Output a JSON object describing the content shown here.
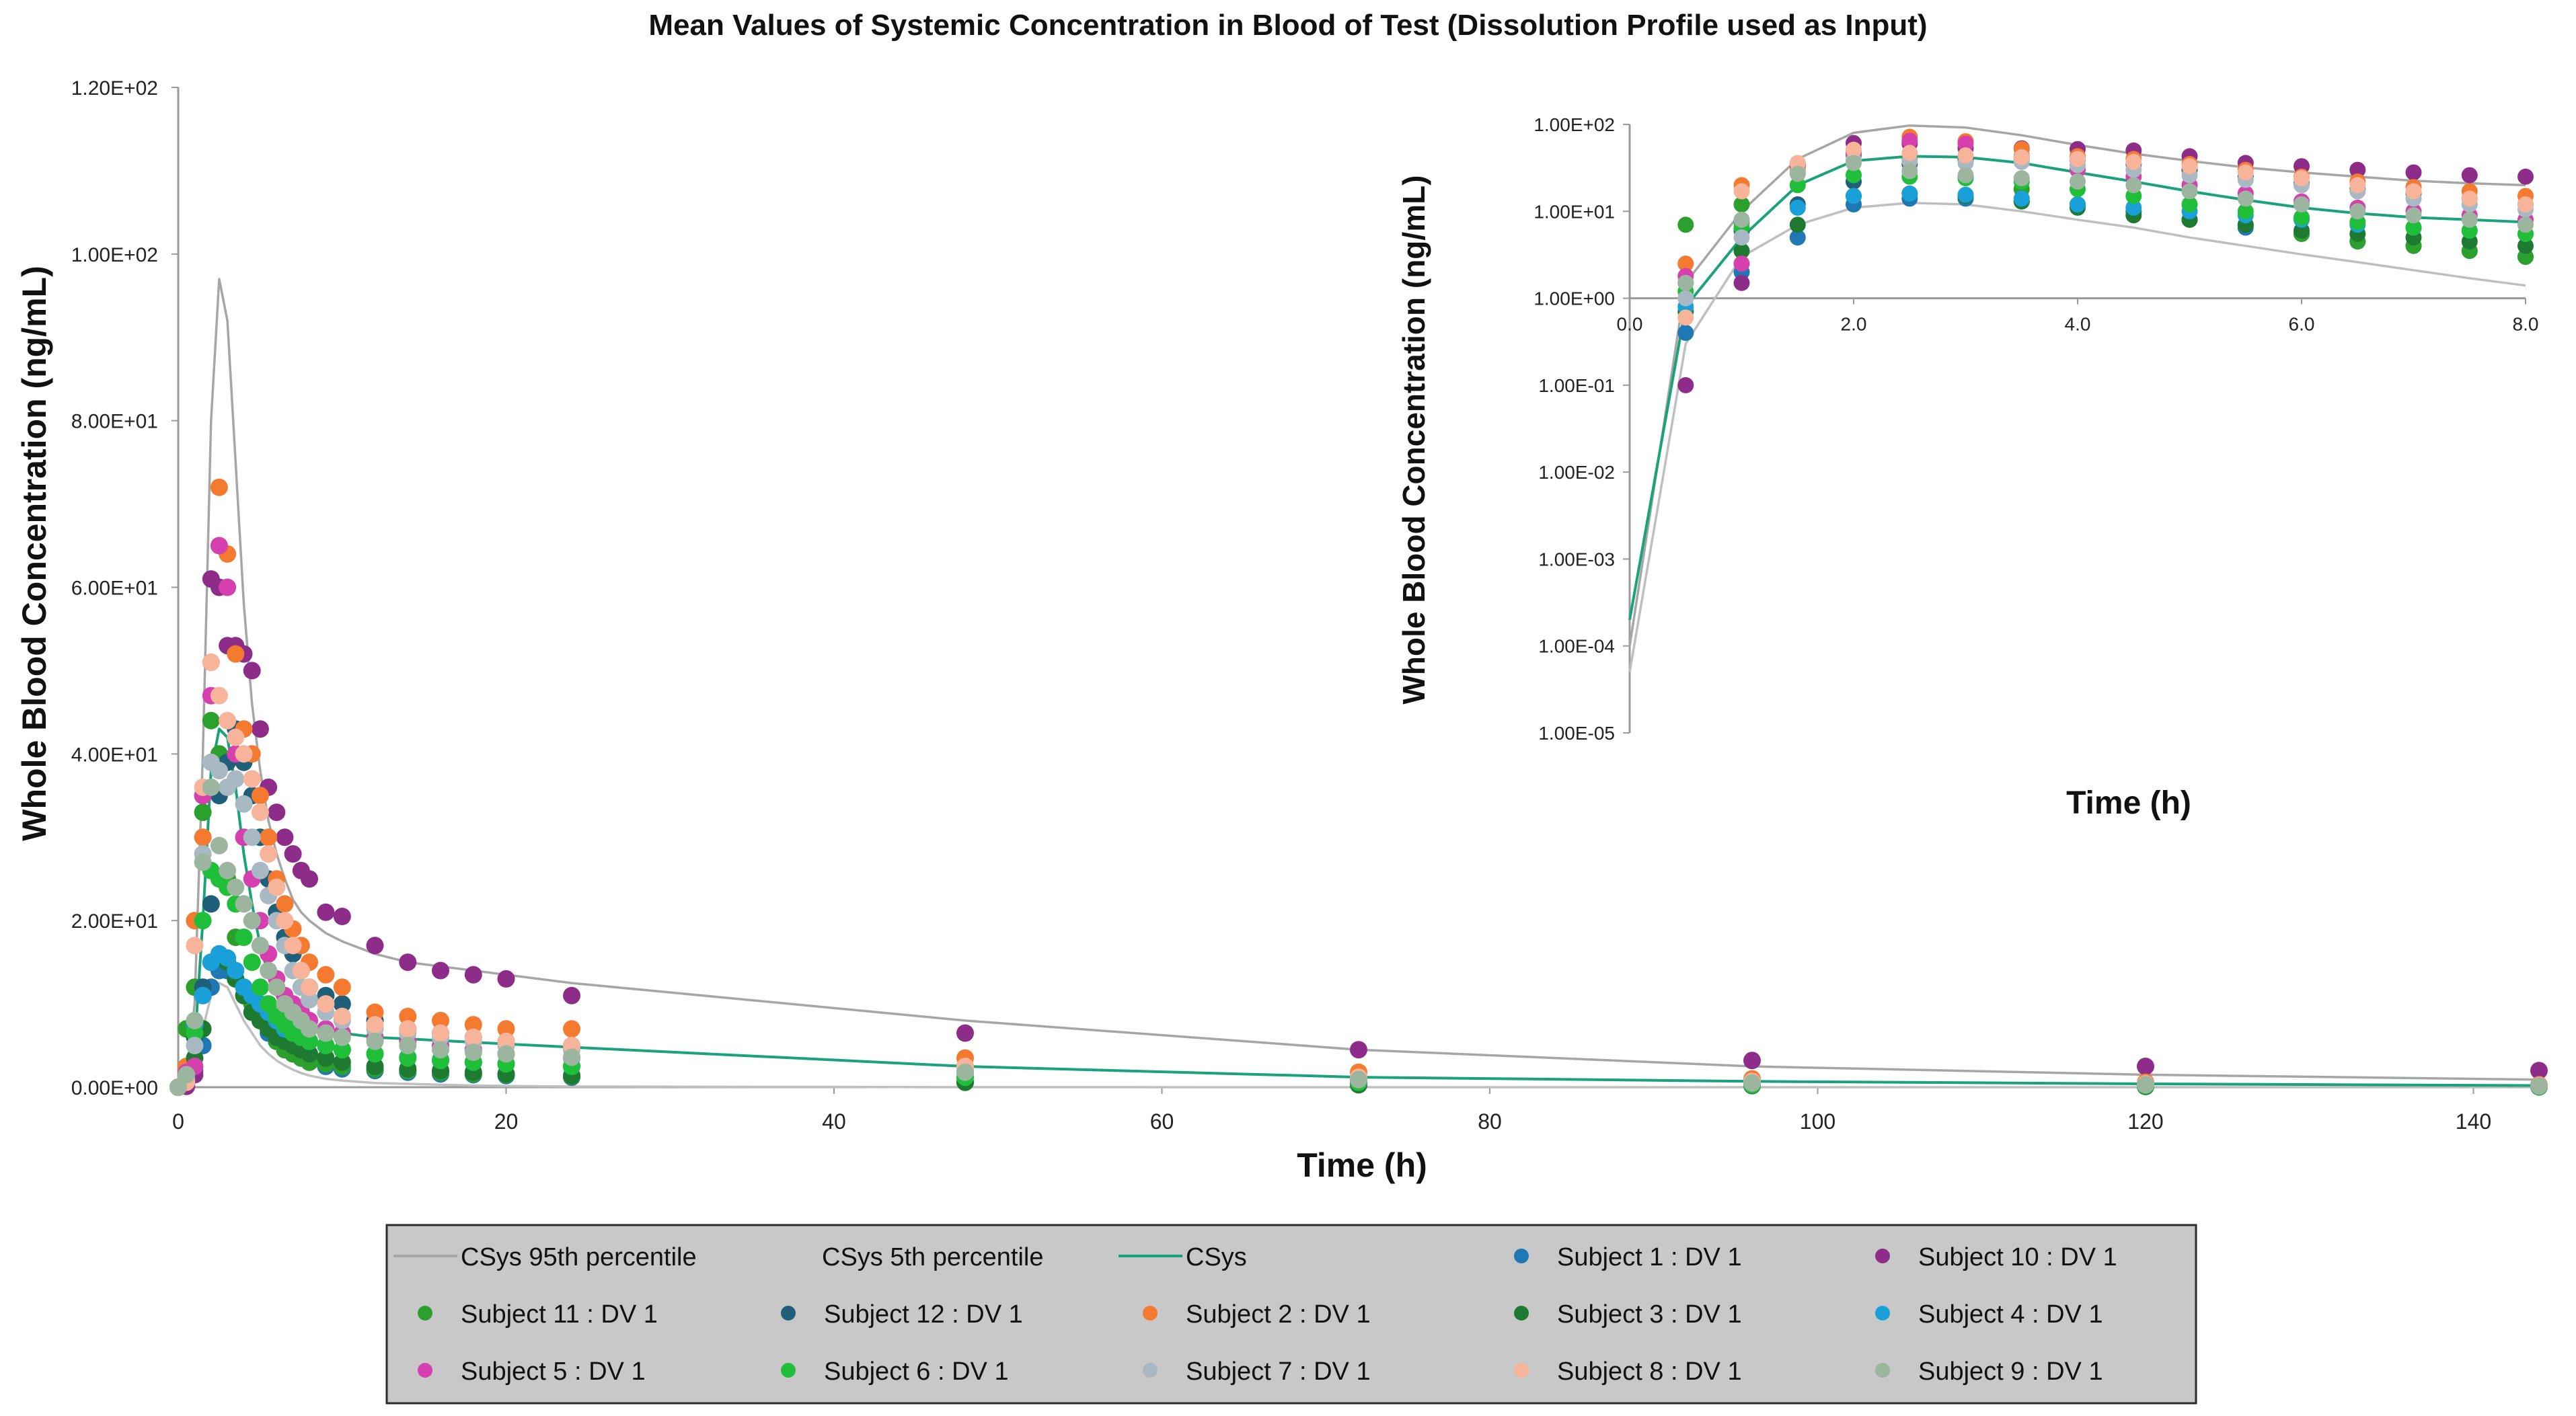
{
  "chart_data": {
    "type": "scatter",
    "title": "Mean Values of Systemic Concentration in Blood of Test (Dissolution Profile used as Input)",
    "colors": {
      "p95": "#a6a6a6",
      "p5": "#bfbfbf",
      "csys": "#1aa37a",
      "legend_bg": "#c8c8c8",
      "legend_border": "#2b2b2b",
      "axis": "#9a9a9a"
    },
    "main": {
      "xlabel": "Time (h)",
      "ylabel": "Whole Blood Concentration (ng/mL)",
      "xlim": [
        0,
        144
      ],
      "ylim": [
        0,
        120
      ],
      "xticks": [
        0,
        20,
        40,
        60,
        80,
        100,
        120,
        140
      ],
      "xtick_labels": [
        "0",
        "20",
        "40",
        "60",
        "80",
        "100",
        "120",
        "140"
      ],
      "yticks": [
        0,
        20,
        40,
        60,
        80,
        100,
        120
      ],
      "ytick_labels": [
        "0.00E+00",
        "2.00E+01",
        "4.00E+01",
        "6.00E+01",
        "8.00E+01",
        "1.00E+02",
        "1.20E+02"
      ]
    },
    "inset": {
      "xlabel": "Time (h)",
      "ylabel": "Whole Blood Concentration (ng/mL)",
      "scale": "log",
      "xlim": [
        0,
        8
      ],
      "ylim": [
        1e-05,
        100
      ],
      "xticks": [
        0,
        2,
        4,
        6,
        8
      ],
      "xtick_labels": [
        "0.0",
        "2.0",
        "4.0",
        "6.0",
        "8.0"
      ],
      "yticks": [
        100,
        10,
        1,
        0.1,
        0.01,
        0.001,
        0.0001,
        1e-05
      ],
      "ytick_labels": [
        "1.00E+02",
        "1.00E+01",
        "1.00E+00",
        "1.00E-01",
        "1.00E-02",
        "1.00E-03",
        "1.00E-04",
        "1.00E-05"
      ]
    },
    "x": [
      0,
      0.5,
      1,
      1.5,
      2,
      2.5,
      3,
      3.5,
      4,
      4.5,
      5,
      5.5,
      6,
      6.5,
      7,
      7.5,
      8,
      9,
      10,
      12,
      14,
      16,
      18,
      20,
      24,
      48,
      72,
      96,
      120,
      144
    ],
    "lines": [
      {
        "name": "CSys 95th percentile",
        "values": [
          0.0001,
          1.5,
          10,
          40,
          80,
          97,
          92,
          75,
          58,
          46,
          38,
          32,
          28,
          25,
          22.5,
          21,
          20,
          18.5,
          17.5,
          16,
          15,
          14.5,
          14,
          13.5,
          12.5,
          8,
          4.5,
          2.5,
          1.5,
          0.9
        ]
      },
      {
        "name": "CSys 5th percentile",
        "values": [
          5e-05,
          0.3,
          3,
          7,
          11,
          12.5,
          12,
          10,
          8,
          6.5,
          5,
          4,
          3.2,
          2.6,
          2.1,
          1.7,
          1.4,
          1,
          0.8,
          0.5,
          0.4,
          0.3,
          0.2,
          0.15,
          0.08,
          0.01,
          0.002,
          0.001,
          0.001,
          0.001
        ]
      },
      {
        "name": "CSys",
        "values": [
          0.0002,
          0.8,
          5,
          20,
          38,
          43,
          42,
          36,
          28,
          22,
          17,
          13.5,
          11,
          9.5,
          8.5,
          8,
          7.5,
          7,
          6.5,
          6,
          5.8,
          5.6,
          5.4,
          5.2,
          4.8,
          2.5,
          1.2,
          0.7,
          0.4,
          0.2
        ]
      }
    ],
    "series": [
      {
        "name": "Subject 1 : DV 1",
        "color": "#1f77b4",
        "values": [
          0,
          0.4,
          2,
          5,
          12,
          14,
          14,
          13,
          12,
          10,
          8,
          6.5,
          5.5,
          4.5,
          4,
          3.5,
          3,
          2.5,
          2.2,
          2,
          1.8,
          1.6,
          1.5,
          1.4,
          1.2,
          0.6,
          0.3,
          0.2,
          0.1,
          0.05
        ]
      },
      {
        "name": "Subject 10 : DV 1",
        "color": "#8e2c8a",
        "values": [
          0,
          0.1,
          1.5,
          35,
          61,
          60,
          53,
          53,
          52,
          50,
          43,
          36,
          33,
          30,
          28,
          26,
          25,
          21,
          20.5,
          17,
          15,
          14,
          13.5,
          13,
          11,
          6.5,
          4.5,
          3.2,
          2.5,
          2
        ]
      },
      {
        "name": "Subject 11 : DV 1",
        "color": "#2ca02c",
        "values": [
          0,
          7,
          12,
          33,
          44,
          40,
          25,
          18,
          12,
          10,
          8,
          7,
          5.5,
          4.5,
          4,
          3.5,
          3,
          2.8,
          2.5,
          2.2,
          2,
          1.8,
          1.6,
          1.5,
          1.3,
          0.6,
          0.3,
          0.2,
          0.1,
          0.05
        ]
      },
      {
        "name": "Subject 12 : DV 1",
        "color": "#1f5f7a",
        "values": [
          0,
          1.5,
          6,
          12,
          22,
          35,
          39,
          43,
          39,
          35,
          30,
          25,
          21,
          18,
          16,
          14,
          12,
          11,
          10,
          8,
          7,
          6.5,
          6,
          5.5,
          5,
          2.5,
          1.2,
          0.7,
          0.4,
          0.2
        ]
      },
      {
        "name": "Subject 2 : DV 1",
        "color": "#f47a30",
        "values": [
          0,
          2.5,
          20,
          30,
          51,
          72,
          64,
          52,
          43,
          40,
          35,
          30,
          25,
          22,
          19,
          17,
          15,
          13.5,
          12,
          9,
          8.5,
          8,
          7.5,
          7,
          7,
          3.5,
          1.8,
          1,
          0.6,
          0.3
        ]
      },
      {
        "name": "Subject 3 : DV 1",
        "color": "#1e7a30",
        "values": [
          0,
          0.7,
          3.5,
          7,
          15,
          16,
          15,
          13,
          11,
          9,
          8,
          7,
          6,
          5.5,
          5,
          4.5,
          4,
          3.5,
          3,
          2.5,
          2.2,
          2,
          1.8,
          1.6,
          1.4,
          0.6,
          0.3,
          0.2,
          0.1,
          0.05
        ]
      },
      {
        "name": "Subject 4 : DV 1",
        "color": "#19a0d8",
        "values": [
          0,
          0.8,
          7.5,
          11,
          15,
          16,
          15.5,
          14,
          12,
          11,
          10,
          9,
          8,
          7,
          6.5,
          6,
          5.5,
          5,
          4.5,
          4,
          3.6,
          3.3,
          3,
          2.8,
          2.5,
          1.2,
          0.6,
          0.3,
          0.2,
          0.1
        ]
      },
      {
        "name": "Subject 5 : DV 1",
        "color": "#d63fae",
        "values": [
          0,
          1.8,
          2.5,
          35,
          47,
          65,
          60,
          40,
          30,
          25,
          20,
          16,
          13,
          11,
          10,
          9,
          8,
          7,
          6.5,
          6,
          5.5,
          5,
          4.5,
          4,
          3.5,
          1.7,
          0.8,
          0.5,
          0.3,
          0.2
        ]
      },
      {
        "name": "Subject 6 : DV 1",
        "color": "#1fbf3a",
        "values": [
          0,
          1.2,
          6.5,
          20,
          26,
          25,
          24,
          22,
          18,
          15,
          12,
          10,
          8.5,
          7.5,
          6.5,
          6,
          5.5,
          5,
          4.5,
          4,
          3.5,
          3.2,
          3,
          2.8,
          2.5,
          1.2,
          0.6,
          0.3,
          0.2,
          0.1
        ]
      },
      {
        "name": "Subject 7 : DV 1",
        "color": "#a9b9c3",
        "values": [
          0,
          1,
          5,
          28,
          39,
          38,
          36,
          37,
          34,
          30,
          26,
          23,
          20,
          17,
          14,
          12,
          10.5,
          9,
          8,
          7,
          6.5,
          6,
          5.5,
          5,
          4.5,
          2.2,
          1,
          0.6,
          0.4,
          0.2
        ]
      },
      {
        "name": "Subject 8 : DV 1",
        "color": "#f7b49a",
        "values": [
          0,
          0.6,
          17,
          36,
          51,
          47,
          44,
          42,
          40,
          37,
          33,
          28,
          24,
          20,
          17,
          14,
          12,
          10,
          8.5,
          7.5,
          7,
          6.5,
          6,
          5.5,
          5,
          2.5,
          1.2,
          0.7,
          0.4,
          0.2
        ]
      },
      {
        "name": "Subject 9 : DV 1",
        "color": "#9cb59f",
        "values": [
          0,
          1.5,
          8,
          27,
          36,
          29,
          26,
          24,
          22,
          20,
          17,
          14,
          12,
          10,
          9,
          8,
          7,
          6.5,
          6,
          5.5,
          5,
          4.5,
          4.2,
          4,
          3.6,
          1.8,
          0.9,
          0.5,
          0.3,
          0.15
        ]
      }
    ],
    "legend": {
      "position": "bottom",
      "items": [
        {
          "label": "CSys 95th percentile",
          "kind": "line",
          "color": "#a6a6a6"
        },
        {
          "label": "CSys 5th percentile",
          "kind": "line",
          "color": "#c8c8c8"
        },
        {
          "label": "CSys",
          "kind": "line",
          "color": "#1aa37a"
        },
        {
          "label": "Subject 1 : DV 1",
          "kind": "marker",
          "color": "#1f77b4"
        },
        {
          "label": "Subject 10 : DV 1",
          "kind": "marker",
          "color": "#8e2c8a"
        },
        {
          "label": "Subject 11 : DV 1",
          "kind": "marker",
          "color": "#2ca02c"
        },
        {
          "label": "Subject 12 : DV 1",
          "kind": "marker",
          "color": "#1f5f7a"
        },
        {
          "label": "Subject 2 : DV 1",
          "kind": "marker",
          "color": "#f47a30"
        },
        {
          "label": "Subject 3 : DV 1",
          "kind": "marker",
          "color": "#1e7a30"
        },
        {
          "label": "Subject 4 : DV 1",
          "kind": "marker",
          "color": "#19a0d8"
        },
        {
          "label": "Subject 5 : DV 1",
          "kind": "marker",
          "color": "#d63fae"
        },
        {
          "label": "Subject 6 : DV 1",
          "kind": "marker",
          "color": "#1fbf3a"
        },
        {
          "label": "Subject 7 : DV 1",
          "kind": "marker",
          "color": "#a9b9c3"
        },
        {
          "label": "Subject 8 : DV 1",
          "kind": "marker",
          "color": "#f7b49a"
        },
        {
          "label": "Subject 9 : DV 1",
          "kind": "marker",
          "color": "#9cb59f"
        }
      ]
    }
  }
}
